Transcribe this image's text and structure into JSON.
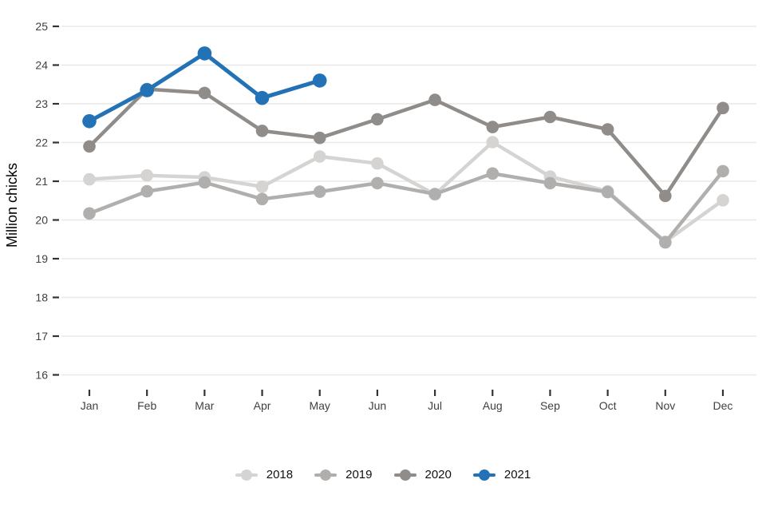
{
  "figure": {
    "background": "#ffffff",
    "title": ""
  },
  "chart_data": {
    "type": "line",
    "title": "",
    "xlabel": "",
    "ylabel": "Million chicks",
    "categories": [
      "Jan",
      "Feb",
      "Mar",
      "Apr",
      "May",
      "Jun",
      "Jul",
      "Aug",
      "Sep",
      "Oct",
      "Nov",
      "Dec"
    ],
    "y_ticks": [
      25,
      24,
      23,
      22,
      21,
      20,
      19,
      18,
      17,
      16
    ],
    "ylim": [
      16,
      25
    ],
    "grid": "horizontal-major-only",
    "legend_position": "bottom-center",
    "series": [
      {
        "name": "2018",
        "color": "#d6d4d2",
        "values": [
          21.05,
          21.15,
          21.1,
          20.86,
          21.64,
          21.46,
          20.66,
          22.01,
          21.12,
          20.74,
          19.44,
          20.51
        ]
      },
      {
        "name": "2019",
        "color": "#b1afad",
        "values": [
          20.17,
          20.74,
          20.97,
          20.54,
          20.73,
          20.95,
          20.67,
          21.2,
          20.95,
          20.72,
          19.42,
          21.26
        ]
      },
      {
        "name": "2020",
        "color": "#8f8c89",
        "values": [
          21.9,
          23.38,
          23.28,
          22.3,
          22.12,
          22.6,
          23.1,
          22.4,
          22.66,
          22.34,
          20.62,
          22.89
        ]
      },
      {
        "name": "2021",
        "color": "#2272b5",
        "values": [
          22.55,
          23.35,
          24.3,
          23.15,
          23.6
        ]
      }
    ],
    "colors": {
      "gridline": "#e8e8e8",
      "tick": "#333333",
      "axis_text": "#404040",
      "axis_title": "#000000"
    }
  }
}
